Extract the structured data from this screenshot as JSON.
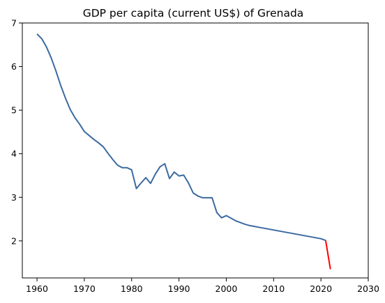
{
  "chart_data": {
    "type": "line",
    "title": "GDP per capita (current US$) of Grenada",
    "xlabel": "",
    "ylabel": "",
    "xlim": [
      1956.9,
      2030
    ],
    "ylim": [
      1.15,
      7.0
    ],
    "grid": false,
    "xticks": [
      1960,
      1970,
      1980,
      1990,
      2000,
      2010,
      2020,
      2030
    ],
    "yticks": [
      2,
      3,
      4,
      5,
      6,
      7
    ],
    "series": [
      {
        "color": "#3b6aa0",
        "x": [
          1960,
          1961,
          1962,
          1963,
          1964,
          1965,
          1966,
          1967,
          1968,
          1969,
          1970,
          1971,
          1972,
          1973,
          1974,
          1975,
          1976,
          1977,
          1978,
          1979,
          1980,
          1981,
          1982,
          1983,
          1984,
          1985,
          1986,
          1987,
          1988,
          1989,
          1990,
          1991,
          1992,
          1993,
          1994,
          1995,
          1996,
          1997,
          1998,
          1999,
          2000,
          2001,
          2002,
          2003,
          2004,
          2005,
          2006,
          2007,
          2008,
          2009,
          2010,
          2011,
          2012,
          2013,
          2014,
          2015,
          2016,
          2017,
          2018,
          2019,
          2020,
          2021
        ],
        "y": [
          6.75,
          6.64,
          6.45,
          6.2,
          5.9,
          5.57,
          5.28,
          5.02,
          4.83,
          4.68,
          4.51,
          4.42,
          4.33,
          4.25,
          4.16,
          4.01,
          3.87,
          3.74,
          3.68,
          3.68,
          3.63,
          3.2,
          3.33,
          3.45,
          3.32,
          3.53,
          3.7,
          3.77,
          3.43,
          3.58,
          3.49,
          3.51,
          3.33,
          3.1,
          3.03,
          2.99,
          2.99,
          2.99,
          2.65,
          2.53,
          2.58,
          2.52,
          2.46,
          2.42,
          2.38,
          2.35,
          2.33,
          2.31,
          2.29,
          2.27,
          2.25,
          2.23,
          2.21,
          2.19,
          2.17,
          2.15,
          2.13,
          2.11,
          2.09,
          2.07,
          2.05,
          2.01
        ]
      },
      {
        "color": "#ff0000",
        "x": [
          2021,
          2022
        ],
        "y": [
          2.01,
          1.35
        ]
      }
    ]
  }
}
